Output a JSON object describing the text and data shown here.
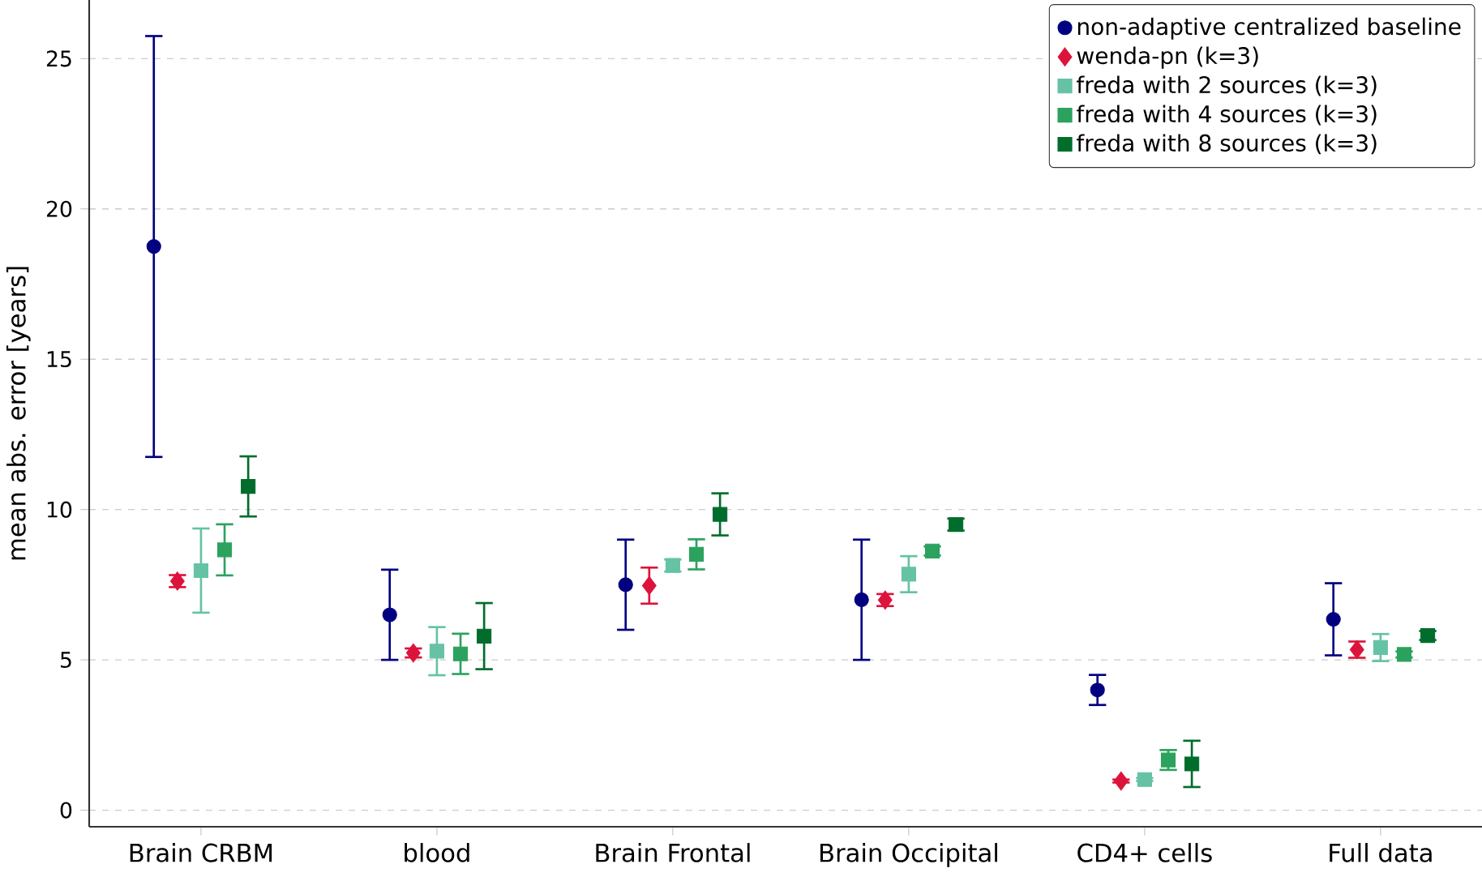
{
  "chart_data": {
    "type": "scatter",
    "ylabel": "mean abs. error [years]",
    "categories": [
      "Brain CRBM",
      "blood",
      "Brain Frontal",
      "Brain Occipital",
      "CD4+ cells",
      "Full data"
    ],
    "ylim": [
      -0.55,
      26.95
    ],
    "yticks": [
      0,
      5,
      10,
      15,
      20,
      25
    ],
    "grid": "y",
    "legend": "top right",
    "series": [
      {
        "name": "non-adaptive centralized baseline",
        "color": "#000080",
        "marker": "circle",
        "values": [
          18.75,
          6.5,
          7.5,
          7.0,
          4.0,
          6.35
        ],
        "errors": [
          7.0,
          1.5,
          1.5,
          2.0,
          0.5,
          1.2
        ]
      },
      {
        "name": "wenda-pn (k=3)",
        "color": "#dc143c",
        "marker": "diamond",
        "values": [
          7.62,
          5.23,
          7.47,
          6.99,
          0.97,
          5.34
        ],
        "errors": [
          0.2,
          0.15,
          0.6,
          0.2,
          0.05,
          0.27
        ]
      },
      {
        "name": "freda with 2 sources (k=3)",
        "color": "#66c2a5",
        "marker": "square",
        "values": [
          7.97,
          5.29,
          8.14,
          7.85,
          1.02,
          5.41
        ],
        "errors": [
          1.4,
          0.8,
          0.2,
          0.6,
          0.05,
          0.45
        ]
      },
      {
        "name": "freda with 4 sources (k=3)",
        "color": "#2ca25f",
        "marker": "square",
        "values": [
          8.66,
          5.2,
          8.51,
          8.62,
          1.67,
          5.18
        ],
        "errors": [
          0.85,
          0.67,
          0.5,
          0.15,
          0.33,
          0.1
        ]
      },
      {
        "name": "freda with 8 sources (k=3)",
        "color": "#006d2c",
        "marker": "square",
        "values": [
          10.77,
          5.79,
          9.84,
          9.5,
          1.54,
          5.81
        ],
        "errors": [
          1.0,
          1.1,
          0.7,
          0.2,
          0.77,
          0.15
        ]
      }
    ]
  }
}
